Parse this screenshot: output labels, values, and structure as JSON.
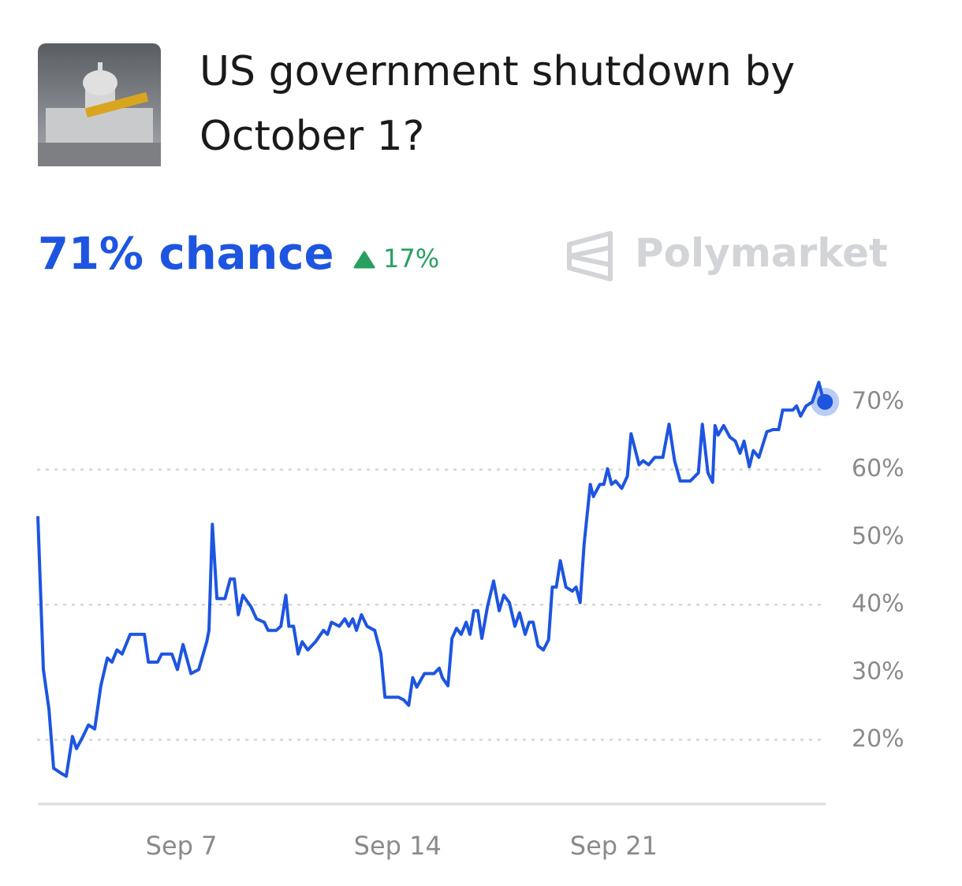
{
  "header": {
    "title": "US government shutdown by October 1?",
    "chance_label": "71% chance",
    "change": "17%",
    "brand": "Polymarket"
  },
  "chart_data": {
    "type": "line",
    "color": "#1d55e0",
    "x": [
      2.35,
      2.53,
      2.71,
      2.86,
      3.12,
      3.27,
      3.47,
      3.6,
      3.81,
      3.99,
      4.19,
      4.39,
      4.6,
      4.75,
      4.91,
      5.08,
      5.34,
      5.8,
      5.93,
      6.23,
      6.36,
      6.69,
      6.87,
      7.05,
      7.31,
      7.56,
      7.82,
      7.89,
      8.0,
      8.15,
      8.41,
      8.58,
      8.71,
      8.84,
      8.99,
      9.25,
      9.43,
      9.68,
      9.81,
      10.07,
      10.22,
      10.38,
      10.48,
      10.63,
      10.78,
      10.91,
      11.09,
      11.34,
      11.6,
      11.73,
      11.86,
      12.11,
      12.29,
      12.42,
      12.55,
      12.67,
      12.83,
      13.01,
      13.26,
      13.46,
      13.59,
      14.03,
      14.2,
      14.36,
      14.49,
      14.62,
      14.87,
      15.18,
      15.35,
      15.45,
      15.63,
      15.76,
      15.91,
      16.06,
      16.22,
      16.34,
      16.47,
      16.6,
      16.73,
      16.91,
      17.11,
      17.29,
      17.44,
      17.62,
      17.8,
      17.95,
      18.13,
      18.26,
      18.39,
      18.55,
      18.72,
      18.89,
      19.01,
      19.14,
      19.27,
      19.45,
      19.66,
      19.78,
      19.91,
      20.04,
      20.24,
      20.34,
      20.55,
      20.68,
      20.8,
      20.93,
      21.06,
      21.26,
      21.44,
      21.56,
      21.69,
      21.82,
      21.95,
      22.13,
      22.33,
      22.59,
      22.79,
      22.97,
      23.15,
      23.48,
      23.74,
      23.87,
      24.05,
      24.2,
      24.28,
      24.38,
      24.56,
      24.76,
      24.94,
      25.09,
      25.22,
      25.39,
      25.52,
      25.7,
      25.96,
      26.16,
      26.34,
      26.47,
      26.67,
      26.8,
      26.92,
      27.05,
      27.23,
      27.43,
      27.64,
      27.74,
      27.84
    ],
    "values": [
      53.1,
      30.4,
      24.5,
      15.8,
      15.0,
      14.6,
      20.5,
      18.7,
      20.5,
      22.2,
      21.6,
      28.0,
      32.1,
      31.5,
      33.3,
      32.7,
      35.6,
      35.6,
      31.5,
      31.5,
      32.7,
      32.7,
      30.4,
      34.1,
      29.8,
      30.4,
      34.5,
      36.2,
      51.9,
      40.9,
      40.9,
      43.8,
      43.8,
      38.5,
      41.4,
      39.7,
      37.9,
      37.4,
      36.2,
      36.2,
      36.8,
      41.4,
      36.8,
      36.8,
      32.7,
      34.5,
      33.3,
      34.5,
      36.2,
      35.6,
      37.4,
      36.8,
      37.9,
      36.8,
      37.9,
      36.2,
      38.5,
      36.8,
      36.2,
      32.7,
      26.3,
      26.3,
      25.9,
      25.1,
      29.2,
      27.8,
      29.8,
      29.8,
      30.6,
      29.2,
      28.0,
      35.0,
      36.5,
      35.6,
      37.4,
      35.6,
      39.1,
      39.1,
      35.0,
      39.7,
      43.5,
      39.1,
      41.4,
      40.3,
      36.8,
      38.8,
      35.6,
      37.4,
      37.4,
      33.9,
      33.3,
      34.8,
      42.6,
      42.6,
      46.5,
      42.6,
      42.0,
      42.6,
      40.3,
      49.0,
      57.8,
      56.0,
      57.8,
      57.8,
      60.1,
      57.8,
      58.3,
      57.2,
      59.0,
      65.3,
      63.0,
      60.7,
      61.3,
      60.7,
      61.8,
      61.8,
      66.7,
      61.3,
      58.3,
      58.3,
      59.5,
      66.7,
      59.5,
      58.1,
      66.5,
      65.1,
      66.5,
      64.8,
      64.2,
      62.4,
      64.2,
      60.4,
      62.8,
      61.8,
      65.6,
      65.9,
      65.9,
      68.8,
      68.8,
      68.8,
      69.4,
      67.9,
      69.4,
      70.0,
      72.9,
      71.1,
      70.0
    ],
    "xlim": [
      2.35,
      27.86
    ],
    "xticks": [
      {
        "value": 7,
        "label": "Sep 7"
      },
      {
        "value": 14,
        "label": "Sep 14"
      },
      {
        "value": 21,
        "label": "Sep 21"
      }
    ],
    "ylim": [
      10.5,
      75
    ],
    "yticks": [
      {
        "value": 20,
        "label": "20%"
      },
      {
        "value": 30,
        "label": "30%"
      },
      {
        "value": 40,
        "label": "40%"
      },
      {
        "value": 50,
        "label": "50%"
      },
      {
        "value": 60,
        "label": "60%"
      },
      {
        "value": 70,
        "label": "70%"
      }
    ],
    "grid": true
  }
}
